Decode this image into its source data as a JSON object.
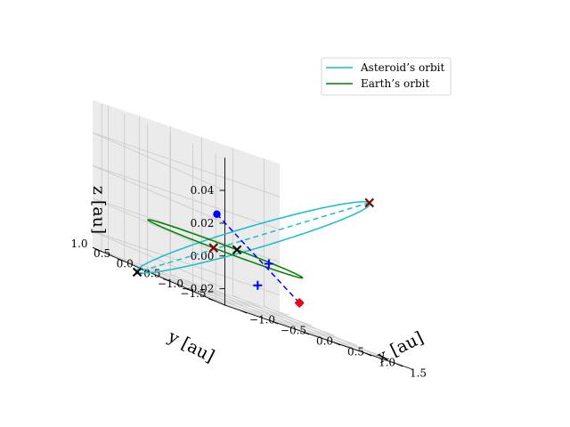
{
  "chart_data": {
    "type": "line",
    "title": "",
    "axes": {
      "x": {
        "label": "x [au]",
        "ticks": [
          -1.0,
          -0.5,
          0.0,
          0.5,
          1.0,
          1.5
        ],
        "tick_labels": [
          "−1.0",
          "−0.5",
          "0.0",
          "0.5",
          "1.0",
          "1.5"
        ],
        "range": [
          -1.25,
          1.75
        ]
      },
      "y": {
        "label": "y [au]",
        "ticks": [
          1.0,
          0.5,
          0.0,
          -0.5,
          -1.0,
          -1.5
        ],
        "tick_labels": [
          "1.0",
          "0.5",
          "0.0",
          "−0.5",
          "−1.0",
          "−1.5"
        ],
        "range": [
          -1.7,
          1.2
        ]
      },
      "z": {
        "label": "z [au]",
        "ticks": [
          -0.02,
          0.0,
          0.02,
          0.04
        ],
        "tick_labels": [
          "−0.02",
          "0.00",
          "0.02",
          "0.04"
        ],
        "range": [
          -0.03,
          0.06
        ]
      }
    },
    "grid": true,
    "legend": {
      "position": "top-right",
      "entries": [
        {
          "label": "Asteroid’s orbit",
          "color": "#17becf"
        },
        {
          "label": "Earth’s orbit",
          "color": "#008000"
        }
      ]
    },
    "series": [
      {
        "name": "Asteroid’s orbit",
        "color": "#17becf",
        "kind": "ellipse",
        "center": [
          0.45,
          0.0,
          0.0128
        ],
        "axis_u": [
          1.35,
          -0.7,
          0.0472
        ],
        "axis_v": [
          -0.5,
          -0.95,
          0.0
        ]
      },
      {
        "name": "Earth’s orbit",
        "color": "#008000",
        "kind": "circle",
        "radius": 1.0
      }
    ],
    "extra_lines": [
      {
        "color": "#17becf",
        "style": "dashed",
        "from": [
          1.8,
          -0.7,
          0.06
        ],
        "to": [
          -0.9,
          0.7,
          -0.0344
        ]
      },
      {
        "color": "#0000ff",
        "style": "dashed",
        "from": [
          -0.5,
          -0.5,
          0.0207
        ],
        "to": [
          0.62,
          -0.78,
          -0.0155
        ]
      }
    ],
    "markers": [
      {
        "symbol": "x",
        "color": "#000000",
        "points": [
          [
            1.8,
            -0.7,
            0.06
          ],
          [
            -0.9,
            0.7,
            -0.0344
          ],
          [
            0.7,
            0.7,
            0.0
          ],
          [
            -0.7,
            -0.7,
            0.0
          ]
        ]
      },
      {
        "symbol": "x",
        "color": "#8b0000",
        "points": [
          [
            1.8,
            -0.7,
            0.06
          ],
          [
            -0.7,
            -0.7,
            0.0
          ]
        ]
      },
      {
        "symbol": "+",
        "color": "#0000ff",
        "points": [
          [
            -0.35,
            -1.19,
            -0.0124
          ],
          [
            0.7,
            0.0,
            0.0
          ],
          [
            0.62,
            -0.78,
            -0.0155
          ]
        ]
      },
      {
        "symbol": "o",
        "color": "#0000ff",
        "points": [
          [
            -0.5,
            -0.5,
            0.0207
          ]
        ]
      },
      {
        "symbol": "o",
        "color": "#ff0000",
        "points": [
          [
            0.62,
            -0.78,
            -0.0155
          ]
        ]
      }
    ]
  }
}
